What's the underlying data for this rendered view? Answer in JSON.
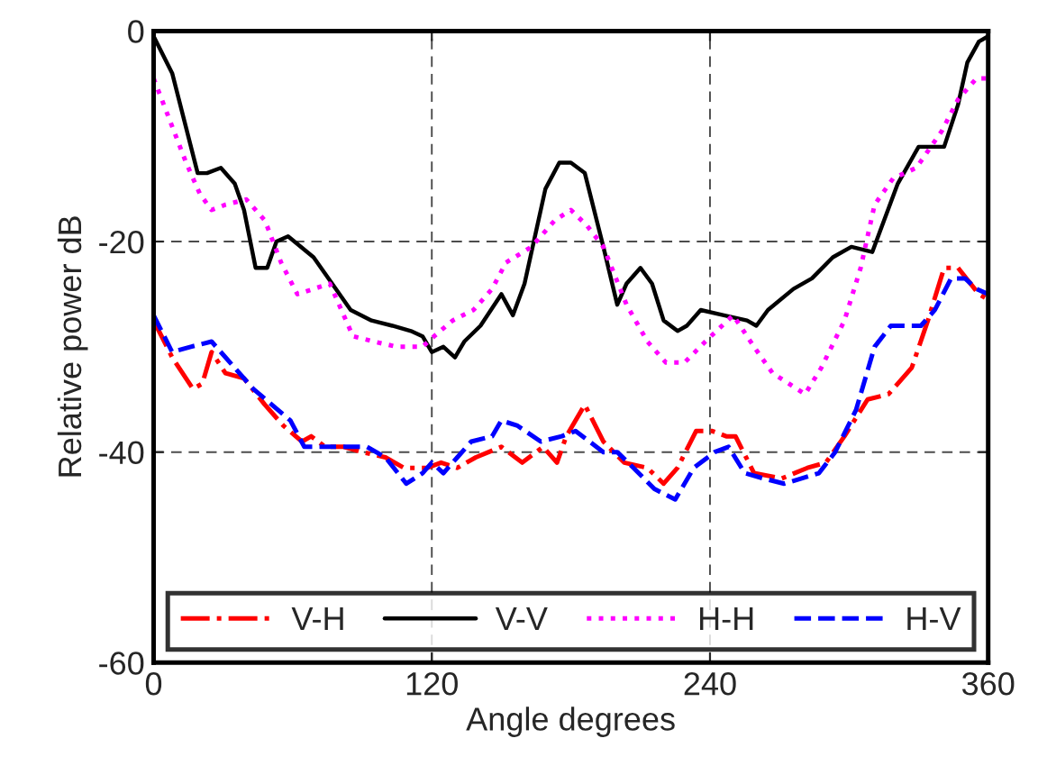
{
  "chart_data": {
    "type": "line",
    "xlabel": "Angle degrees",
    "ylabel": "Relative power dB",
    "xlim": [
      0,
      360
    ],
    "ylim": [
      -60,
      0
    ],
    "xticks": [
      0,
      120,
      240,
      360
    ],
    "yticks": [
      -60,
      -40,
      -20,
      0
    ],
    "grid": true,
    "legend": "bottom",
    "series": [
      {
        "name": "V-H",
        "color": "#ff0000",
        "line_style": "dashdot",
        "x": [
          0,
          8,
          17,
          21,
          25,
          31,
          39,
          48,
          56,
          64,
          68,
          74,
          82,
          90,
          100,
          108,
          118,
          124,
          131,
          139,
          150,
          159,
          168,
          174,
          178,
          186,
          194,
          203,
          213,
          220,
          226,
          234,
          241,
          247,
          251,
          259,
          271,
          282,
          290,
          298,
          308,
          317,
          327,
          334,
          341,
          347,
          356,
          360
        ],
        "values": [
          -27.5,
          -31,
          -34,
          -33.5,
          -30.5,
          -32.5,
          -33,
          -35.5,
          -37.5,
          -39,
          -38.5,
          -39.5,
          -39.5,
          -40,
          -40.5,
          -41.5,
          -41.5,
          -41,
          -41.5,
          -40.5,
          -39.5,
          -41,
          -39.5,
          -41,
          -38.5,
          -35.5,
          -39,
          -41,
          -41.5,
          -43,
          -41.5,
          -38,
          -38,
          -38.5,
          -38.5,
          -42,
          -42.5,
          -41.5,
          -41,
          -38.5,
          -35,
          -34.5,
          -32,
          -27.5,
          -22.5,
          -22.5,
          -25,
          -25.5
        ]
      },
      {
        "name": "V-V",
        "color": "#000000",
        "line_style": "solid",
        "x": [
          0,
          8,
          19,
          23,
          29,
          35,
          39,
          44,
          49,
          53,
          58,
          69,
          77,
          85,
          94,
          103,
          111,
          116,
          120,
          125,
          130,
          134,
          141,
          150,
          155,
          160,
          169,
          175,
          180,
          186,
          194,
          200,
          204,
          210,
          215,
          220,
          226,
          230,
          236,
          246,
          256,
          260,
          265,
          276,
          284,
          293,
          301,
          310,
          321,
          330,
          341,
          347,
          351,
          356,
          360
        ],
        "values": [
          -0.5,
          -4,
          -13.5,
          -13.5,
          -13,
          -14.5,
          -17,
          -22.5,
          -22.5,
          -20,
          -19.5,
          -21.5,
          -24,
          -26.5,
          -27.5,
          -28,
          -28.5,
          -29,
          -30.5,
          -30,
          -31,
          -29.5,
          -28,
          -25,
          -27,
          -24,
          -15,
          -12.5,
          -12.5,
          -13.5,
          -20.5,
          -26,
          -24,
          -22.5,
          -24,
          -27.5,
          -28.5,
          -28,
          -26.5,
          -27,
          -27.5,
          -28,
          -26.5,
          -24.5,
          -23.5,
          -21.5,
          -20.5,
          -21,
          -14.5,
          -11,
          -11,
          -7,
          -3,
          -1,
          -0.5
        ]
      },
      {
        "name": "H-H",
        "color": "#ff00ff",
        "line_style": "dotted",
        "x": [
          0,
          7,
          14,
          20,
          25,
          31,
          40,
          48,
          55,
          62,
          69,
          76,
          81,
          86,
          95,
          105,
          116,
          121,
          129,
          138,
          146,
          152,
          163,
          173,
          180,
          187,
          194,
          204,
          213,
          221,
          229,
          238,
          250,
          259,
          267,
          281,
          288,
          298,
          305,
          311,
          319,
          329,
          340,
          347,
          355,
          360
        ],
        "values": [
          -4.5,
          -8.5,
          -12.5,
          -15.5,
          -17,
          -16.5,
          -16,
          -18,
          -22,
          -25,
          -24.5,
          -24,
          -26.5,
          -29,
          -29.5,
          -30,
          -30,
          -29,
          -27.5,
          -26.5,
          -24.5,
          -22,
          -20.5,
          -18,
          -17,
          -18.5,
          -20.5,
          -26,
          -29.5,
          -31.5,
          -31.5,
          -29.5,
          -27,
          -30,
          -32.5,
          -34.5,
          -32,
          -27.5,
          -22.5,
          -16.5,
          -14,
          -13,
          -9.5,
          -6.5,
          -4.5,
          -4.5
        ]
      },
      {
        "name": "H-V",
        "color": "#0000ff",
        "line_style": "dashed",
        "x": [
          0,
          8,
          16,
          25,
          33,
          43,
          51,
          59,
          65,
          72,
          82,
          92,
          100,
          109,
          116,
          120,
          125,
          131,
          137,
          146,
          150,
          157,
          167,
          176,
          182,
          194,
          200,
          207,
          216,
          225,
          233,
          242,
          248,
          255,
          263,
          272,
          287,
          294,
          303,
          311,
          318,
          331,
          337,
          344,
          350,
          355,
          360
        ],
        "values": [
          -27,
          -30.5,
          -30,
          -29.5,
          -31.5,
          -34,
          -35.5,
          -37,
          -39.5,
          -39.5,
          -39.5,
          -39.5,
          -40.5,
          -43,
          -42,
          -41,
          -42,
          -40.5,
          -39,
          -38.5,
          -37,
          -37.5,
          -39,
          -38.5,
          -38,
          -40,
          -40,
          -41.5,
          -43.5,
          -44.5,
          -41.5,
          -40,
          -39.5,
          -42,
          -42.5,
          -43,
          -42,
          -40,
          -36,
          -30,
          -28,
          -28,
          -26.5,
          -23.5,
          -23.5,
          -24.5,
          -25
        ]
      }
    ]
  }
}
